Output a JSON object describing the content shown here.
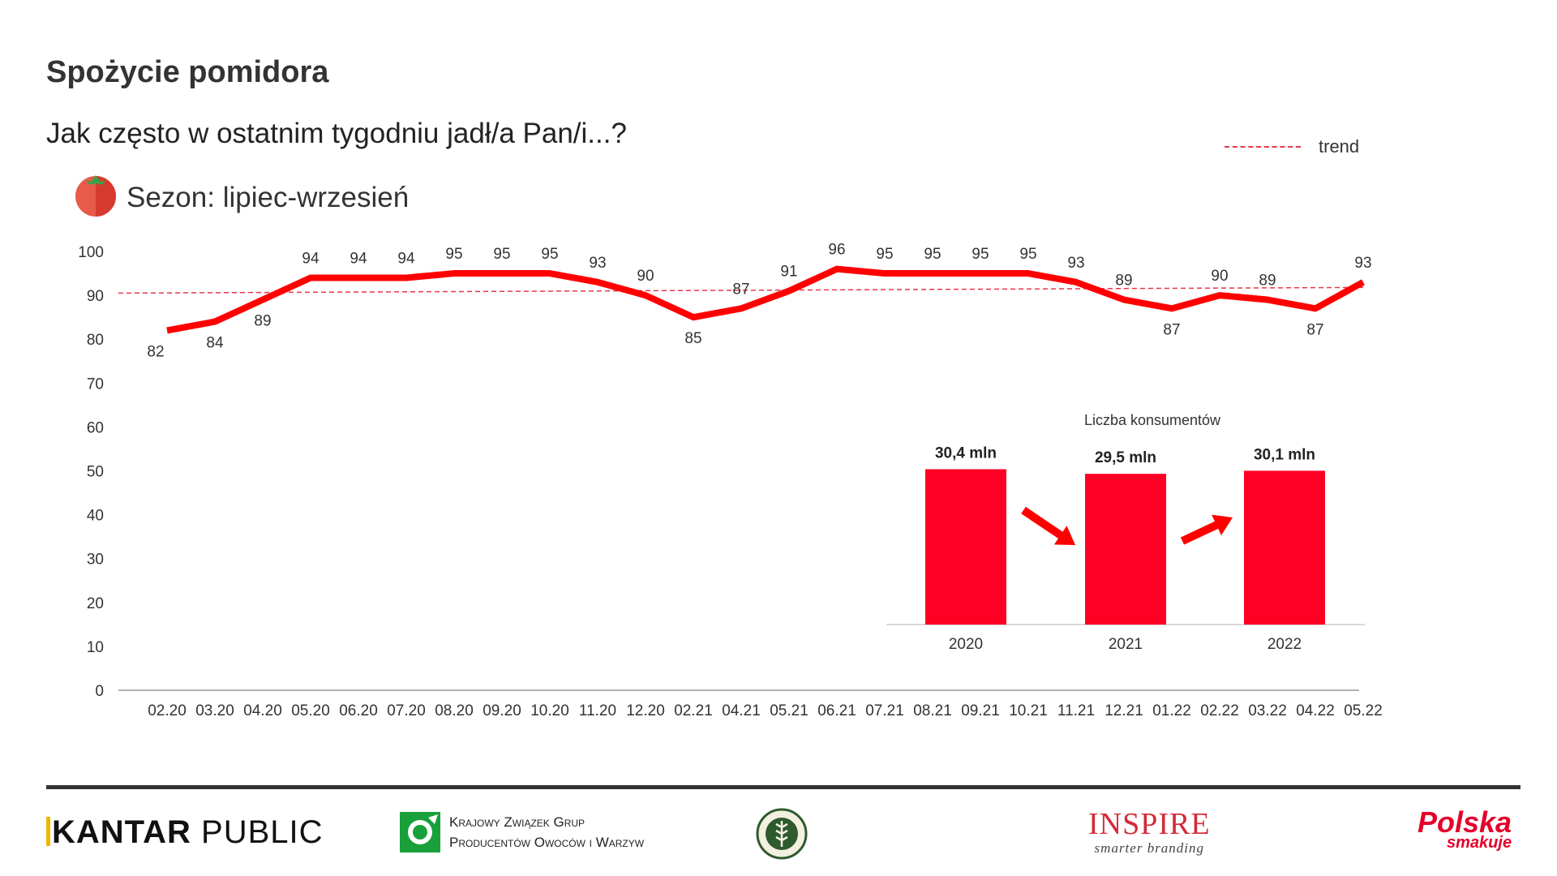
{
  "header": {
    "title": "Spożycie pomidora",
    "question": "Jak często w ostatnim tygodniu jadł/a Pan/i...?",
    "season": "Sezon: lipiec-wrzesień",
    "legend_label": "trend"
  },
  "chart_data": [
    {
      "type": "line",
      "x": [
        "02.20",
        "03.20",
        "04.20",
        "05.20",
        "06.20",
        "07.20",
        "08.20",
        "09.20",
        "10.20",
        "11.20",
        "12.20",
        "02.21",
        "04.21",
        "05.21",
        "06.21",
        "07.21",
        "08.21",
        "09.21",
        "10.21",
        "11.21",
        "12.21",
        "01.22",
        "02.22",
        "03.22",
        "04.22",
        "05.22"
      ],
      "series": [
        {
          "values": [
            82,
            84,
            89,
            94,
            94,
            94,
            95,
            95,
            95,
            93,
            90,
            85,
            87,
            91,
            96,
            95,
            95,
            95,
            95,
            93,
            89,
            87,
            90,
            89,
            87,
            93
          ],
          "color": "#ff0000"
        }
      ],
      "trend": {
        "name": "trend",
        "start": 90.5,
        "end": 91.8,
        "color": "#e8364a",
        "style": "dashed"
      },
      "yticks": [
        "0",
        "10",
        "20",
        "30",
        "40",
        "50",
        "60",
        "70",
        "80",
        "90",
        "100"
      ],
      "ylim": [
        0,
        100
      ],
      "grid": false,
      "legend_position": "top-right"
    },
    {
      "type": "bar",
      "title": "Liczba konsumentów",
      "categories": [
        "2020",
        "2021",
        "2022"
      ],
      "values": [
        30.4,
        29.5,
        30.1
      ],
      "value_labels": [
        "30,4 mln",
        "29,5 mln",
        "30,1 mln"
      ],
      "color": "#ff0025",
      "arrows": [
        "down",
        "up"
      ]
    }
  ],
  "footer": {
    "kantar_bold": "KANTAR",
    "kantar_rest": "PUBLIC",
    "kzgp_line1": "Krajowy Związek Grup",
    "kzgp_line2": "Producentów Owoców i Warzyw",
    "inspire_name": "INSPIRE",
    "inspire_tagline": "smarter branding",
    "polska_line1": "Polska",
    "polska_line2": "smakuje"
  }
}
